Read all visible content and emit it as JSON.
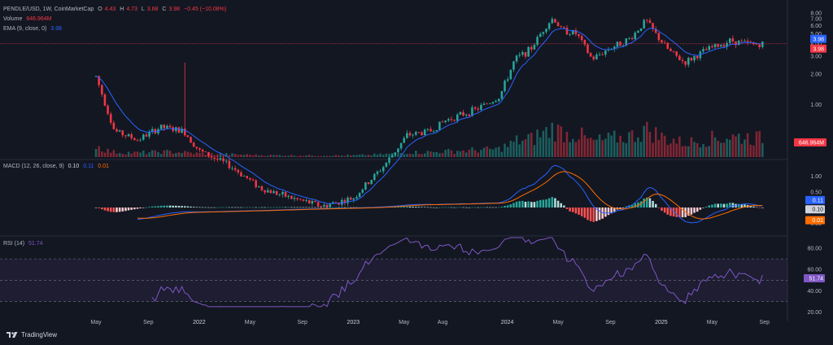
{
  "header": {
    "symbol": "PENDLE/USD, 1W, CoinMarketCap",
    "ohlc": [
      {
        "k": "O",
        "v": "4.43"
      },
      {
        "k": "H",
        "v": "4.73"
      },
      {
        "k": "L",
        "v": "3.68"
      },
      {
        "k": "C",
        "v": "3.98"
      }
    ],
    "change": "−0.45 (−10.08%)",
    "volume_label": "Volume",
    "volume_value": "646.964M",
    "ema_label": "EMA (9, close, 0)",
    "ema_value": "3.98"
  },
  "macd_legend": {
    "label": "MACD (12, 26, close, 9)",
    "v1": "0.10",
    "v2": "0.11",
    "v3": "0.01"
  },
  "rsi_legend": {
    "label": "RSI (14)",
    "value": "51.74"
  },
  "footer": {
    "brand": "TradingView"
  },
  "colors": {
    "up": "#26a69a",
    "down": "#f23645",
    "ema": "#2962ff",
    "macd": "#2962ff",
    "signal": "#ff6d00",
    "rsi": "#7e57c2",
    "bg": "#131722",
    "grid": "#1e222d"
  },
  "chart_data": [
    {
      "type": "candlestick",
      "title": "PENDLE/USD, 1W, CoinMarketCap",
      "scale": "log",
      "y_ticks": [
        "8.00",
        "7.00",
        "6.00",
        "5.00",
        "4.00",
        "3.00",
        "2.00",
        "1.00"
      ],
      "price_labels": [
        {
          "value": "3.98",
          "label": "3.98",
          "color": "#2962ff"
        },
        {
          "value": "3.98",
          "label": "3.98",
          "color": "#f23645"
        },
        {
          "label": "646.964M",
          "color": "#f23645"
        }
      ],
      "x_ticks": [
        "May",
        "Sep",
        "2022",
        "May",
        "Sep",
        "2023",
        "May",
        "Aug",
        "2024",
        "May",
        "Sep",
        "2025",
        "May",
        "Sep"
      ],
      "close_path": [
        [
          2021.33,
          1.9
        ],
        [
          2021.45,
          0.55
        ],
        [
          2021.6,
          0.45
        ],
        [
          2021.75,
          0.6
        ],
        [
          2021.9,
          0.55
        ],
        [
          2022.0,
          0.35
        ],
        [
          2022.2,
          0.25
        ],
        [
          2022.4,
          0.15
        ],
        [
          2022.6,
          0.12
        ],
        [
          2022.8,
          0.1
        ],
        [
          2023.0,
          0.12
        ],
        [
          2023.2,
          0.25
        ],
        [
          2023.35,
          0.5
        ],
        [
          2023.5,
          0.55
        ],
        [
          2023.6,
          0.7
        ],
        [
          2023.8,
          0.9
        ],
        [
          2023.95,
          1.2
        ],
        [
          2024.05,
          2.8
        ],
        [
          2024.15,
          3.5
        ],
        [
          2024.25,
          6.0
        ],
        [
          2024.3,
          7.2
        ],
        [
          2024.35,
          5.5
        ],
        [
          2024.45,
          5.0
        ],
        [
          2024.55,
          2.8
        ],
        [
          2024.65,
          3.5
        ],
        [
          2024.8,
          4.5
        ],
        [
          2024.9,
          6.8
        ],
        [
          2024.97,
          4.8
        ],
        [
          2025.05,
          3.4
        ],
        [
          2025.15,
          2.6
        ],
        [
          2025.3,
          3.5
        ],
        [
          2025.45,
          4.3
        ],
        [
          2025.6,
          3.9
        ],
        [
          2025.65,
          3.98
        ]
      ],
      "volume": {
        "last": "646.964M"
      }
    },
    {
      "type": "line",
      "title": "MACD (12, 26, close, 9)",
      "y_ticks": [
        "1.00",
        "0.50",
        "0.00",
        "−0.50"
      ],
      "series": [
        {
          "name": "MACD",
          "color": "#2962ff",
          "last": 0.1
        },
        {
          "name": "Signal",
          "color": "#ff6d00",
          "last": 0.11
        },
        {
          "name": "Histogram",
          "last": 0.01
        }
      ],
      "value_labels": [
        "0.11",
        "0.10",
        "0.01"
      ]
    },
    {
      "type": "line",
      "title": "RSI (14)",
      "y_ticks": [
        "80.00",
        "60.00",
        "40.00",
        "20.00"
      ],
      "bands": [
        30,
        50,
        70
      ],
      "series": [
        {
          "name": "RSI",
          "color": "#7e57c2",
          "last": 51.74
        }
      ],
      "value_label": "51.74"
    }
  ]
}
